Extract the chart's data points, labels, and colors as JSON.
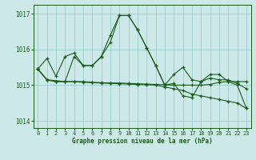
{
  "xlabel": "Graphe pression niveau de la mer (hPa)",
  "bg_color": "#cce8e8",
  "grid_color": "#99cccc",
  "line_color": "#1a5c1a",
  "xlim": [
    -0.5,
    23.5
  ],
  "ylim": [
    1013.8,
    1017.25
  ],
  "yticks": [
    1014,
    1015,
    1016,
    1017
  ],
  "xticks": [
    0,
    1,
    2,
    3,
    4,
    5,
    6,
    7,
    8,
    9,
    10,
    11,
    12,
    13,
    14,
    15,
    16,
    17,
    18,
    19,
    20,
    21,
    22,
    23
  ],
  "series": [
    {
      "x": [
        0,
        1,
        2,
        3,
        4,
        5,
        6,
        7,
        8,
        9,
        10,
        11,
        12,
        13,
        14,
        15,
        16,
        17,
        18,
        19,
        20,
        21,
        22,
        23
      ],
      "y": [
        1015.45,
        1015.75,
        1015.25,
        1015.8,
        1015.9,
        1015.55,
        1015.55,
        1015.8,
        1016.2,
        1016.95,
        1016.95,
        1016.55,
        1016.05,
        1015.55,
        1015.0,
        1015.3,
        1015.5,
        1015.15,
        1015.1,
        1015.2,
        1015.15,
        1015.15,
        1015.05,
        1014.9
      ]
    },
    {
      "x": [
        0,
        1,
        2,
        3,
        4,
        5,
        6,
        7,
        8,
        9,
        10,
        11,
        12,
        13,
        14,
        15,
        16,
        17,
        18,
        19,
        20,
        21,
        22,
        23
      ],
      "y": [
        1015.45,
        1015.15,
        1015.1,
        1015.1,
        1015.1,
        1015.1,
        1015.08,
        1015.07,
        1015.06,
        1015.06,
        1015.05,
        1015.04,
        1015.03,
        1015.02,
        1015.01,
        1015.0,
        1015.0,
        1015.0,
        1015.0,
        1015.02,
        1015.08,
        1015.1,
        1015.1,
        1015.1
      ]
    },
    {
      "x": [
        0,
        1,
        3,
        4,
        5,
        6,
        7,
        8,
        9,
        10,
        11,
        12,
        13,
        14,
        15,
        16,
        17,
        18,
        19,
        20,
        21,
        22,
        23
      ],
      "y": [
        1015.45,
        1015.15,
        1015.1,
        1015.8,
        1015.55,
        1015.55,
        1015.8,
        1016.4,
        1016.95,
        1016.95,
        1016.55,
        1016.05,
        1015.55,
        1015.0,
        1015.05,
        1014.7,
        1014.65,
        1015.1,
        1015.3,
        1015.3,
        1015.1,
        1015.0,
        1014.35
      ]
    },
    {
      "x": [
        0,
        1,
        2,
        3,
        4,
        5,
        6,
        7,
        8,
        9,
        10,
        11,
        12,
        13,
        14,
        15,
        16,
        17,
        18,
        19,
        20,
        21,
        22,
        23
      ],
      "y": [
        1015.45,
        1015.15,
        1015.1,
        1015.1,
        1015.1,
        1015.08,
        1015.07,
        1015.06,
        1015.05,
        1015.04,
        1015.03,
        1015.02,
        1015.01,
        1015.0,
        1014.95,
        1014.9,
        1014.85,
        1014.75,
        1014.7,
        1014.65,
        1014.6,
        1014.55,
        1014.5,
        1014.35
      ]
    }
  ]
}
